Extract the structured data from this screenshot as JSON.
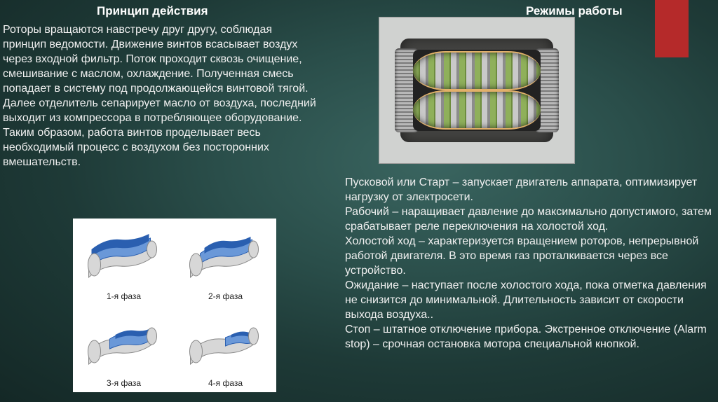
{
  "headings": {
    "left": "Принцип действия",
    "right": "Режимы работы"
  },
  "body": {
    "left": "Роторы вращаются навстречу друг другу, соблюдая принцип ведомости. Движение винтов всасывает воздух через входной фильтр. Поток проходит сквозь очищение, смешивание с маслом, охлаждение. Полученная смесь попадает в систему под продолжающейся винтовой тягой. Далее отделитель сепарирует масло от воздуха, последний выходит из компрессора в потребляющее оборудование. Таким образом, работа винтов проделывает весь необходимый процесс с воздухом без посторонних вмешательств.",
    "right": "Пусковой или Старт – запускает двигатель аппарата, оптимизирует нагрузку от электросети.\nРабочий – наращивает давление до максимально допустимого, затем срабатывает реле переключения на холостой ход.\nХолостой ход – характеризуется вращением роторов, непрерывной работой двигателя. В это время газ проталкивается через все устройство.\nОжидание – наступает после холостого хода, пока отметка давления не снизится до минимальной. Длительность зависит от скорости выхода воздуха..\nСтоп – штатное отключение прибора. Экстренное отключение (Alarm stop) – срочная остановка мотора специальной кнопкой."
  },
  "phases": {
    "p1": "1-я фаза",
    "p2": "2-я фаза",
    "p3": "3-я фаза",
    "p4": "4-я фаза"
  },
  "colors": {
    "accent_red": "#b52a2a",
    "rotor_green": "#8fb05a",
    "rotor_steel": "#c9c9c9",
    "phase_blue": "#2a5fb0",
    "phase_blue_light": "#6a98d8",
    "phase_grey": "#d7d7d7"
  }
}
